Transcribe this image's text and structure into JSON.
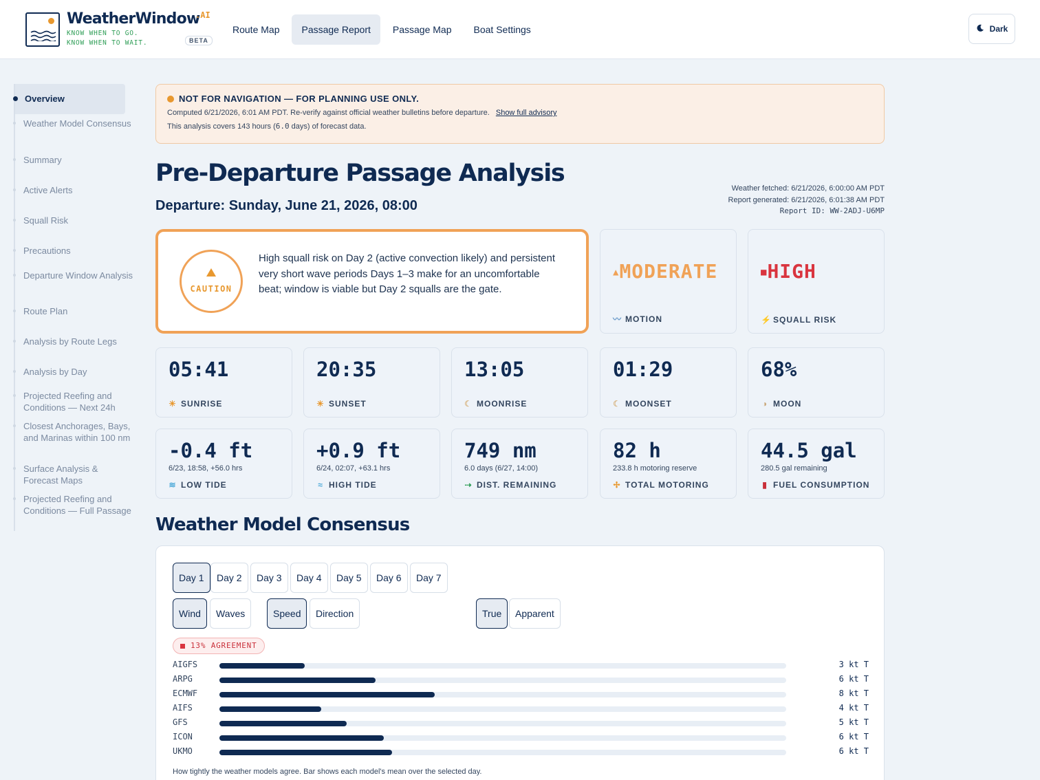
{
  "brand": {
    "name": "WeatherWindow",
    "suffix": ".AI",
    "tagline_1": "KNOW WHEN TO GO.",
    "tagline_2": "KNOW WHEN TO WAIT.",
    "beta": "BETA"
  },
  "nav": [
    "Route Map",
    "Passage Report",
    "Passage Map",
    "Boat Settings"
  ],
  "nav_active": "Passage Report",
  "theme_toggle": {
    "label": "Dark",
    "icon": "moon-icon"
  },
  "sidebar": [
    "Overview",
    "Weather Model Consensus",
    "Summary",
    "Active Alerts",
    "Squall Risk",
    "Precautions",
    "Departure Window Analysis",
    "Route Plan",
    "Analysis by Route Legs",
    "Analysis by Day",
    "Projected Reefing and Conditions — Next 24h",
    "Closest Anchorages, Bays, and Marinas within 100 nm",
    "Surface Analysis & Forecast Maps",
    "Projected Reefing and Conditions — Full Passage"
  ],
  "advisory": {
    "title": "NOT FOR NAVIGATION — FOR PLANNING USE ONLY.",
    "computed": "Computed 6/21/2026, 6:01 AM PDT. Re-verify against official weather bulletins before departure.",
    "link": "Show full advisory",
    "coverage_prefix": "This analysis covers 143 hours (",
    "coverage_days": "6.0",
    "coverage_suffix": " days) of forecast data."
  },
  "report": {
    "title": "Pre-Departure Passage Analysis",
    "departure": "Departure: Sunday, June 21, 2026, 08:00",
    "weather_fetched": "Weather fetched: 6/21/2026, 6:00:00 AM PDT",
    "report_generated": "Report generated: 6/21/2026, 6:01:38 AM PDT",
    "report_id": "Report ID: WW-2ADJ-U6MP"
  },
  "verdict": {
    "level": "CAUTION",
    "summary": "High squall risk on Day 2 (active convection likely) and persistent very short wave periods Days 1–3 make for an uncomfortable beat; window is viable but Day 2 squalls are the gate."
  },
  "risk_cards": [
    {
      "value": "MODERATE",
      "label": "MOTION",
      "color": "#f0a257",
      "icon": "wave-icon"
    },
    {
      "value": "HIGH",
      "label": "SQUALL RISK",
      "color": "#d9343f",
      "icon": "lightning-icon"
    }
  ],
  "astro": [
    {
      "value": "05:41",
      "label": "SUNRISE",
      "icon": "sun-icon"
    },
    {
      "value": "20:35",
      "label": "SUNSET",
      "icon": "sun-icon"
    },
    {
      "value": "13:05",
      "label": "MOONRISE",
      "icon": "moon-icon"
    },
    {
      "value": "01:29",
      "label": "MOONSET",
      "icon": "moon-icon"
    },
    {
      "value": "68%",
      "label": "MOON",
      "icon": "moon-phase-icon"
    }
  ],
  "passage_stats": [
    {
      "value": "-0.4 ft",
      "sub": "6/23, 18:58, +56.0 hrs",
      "label": "LOW TIDE",
      "icon": "low-tide-icon"
    },
    {
      "value": "+0.9 ft",
      "sub": "6/24, 02:07, +63.1 hrs",
      "label": "HIGH TIDE",
      "icon": "high-tide-icon"
    },
    {
      "value": "749 nm",
      "sub": "6.0 days (6/27, 14:00)",
      "label": "DIST. REMAINING",
      "icon": "arrow-icon"
    },
    {
      "value": "82 h",
      "sub": "233.8 h motoring reserve",
      "label": "TOTAL MOTORING",
      "icon": "propeller-icon"
    },
    {
      "value": "44.5 gal",
      "sub": "280.5 gal remaining",
      "label": "FUEL CONSUMPTION",
      "icon": "fuel-icon"
    }
  ],
  "consensus": {
    "title": "Weather Model Consensus",
    "days": [
      "Day 1",
      "Day 2",
      "Day 3",
      "Day 4",
      "Day 5",
      "Day 6",
      "Day 7"
    ],
    "selected_day": "Day 1",
    "variables": [
      "Wind",
      "Waves"
    ],
    "selected_variable": "Wind",
    "metrics": [
      "Speed",
      "Direction"
    ],
    "selected_metric": "Speed",
    "references": [
      "True",
      "Apparent"
    ],
    "selected_reference": "True",
    "agreement": "13% AGREEMENT",
    "scale_max_kt": 20,
    "models": [
      {
        "name": "AIGFS",
        "speed_kt": 3,
        "display": "3 kt T"
      },
      {
        "name": "ARPG",
        "speed_kt": 5.5,
        "display": "6 kt T"
      },
      {
        "name": "ECMWF",
        "speed_kt": 7.6,
        "display": "8 kt T"
      },
      {
        "name": "AIFS",
        "speed_kt": 3.6,
        "display": "4 kt T"
      },
      {
        "name": "GFS",
        "speed_kt": 4.5,
        "display": "5 kt T"
      },
      {
        "name": "ICON",
        "speed_kt": 5.8,
        "display": "6 kt T"
      },
      {
        "name": "UKMO",
        "speed_kt": 6.1,
        "display": "6 kt T"
      }
    ],
    "footnote": "How tightly the weather models agree. Bar shows each model's mean over the selected day."
  }
}
